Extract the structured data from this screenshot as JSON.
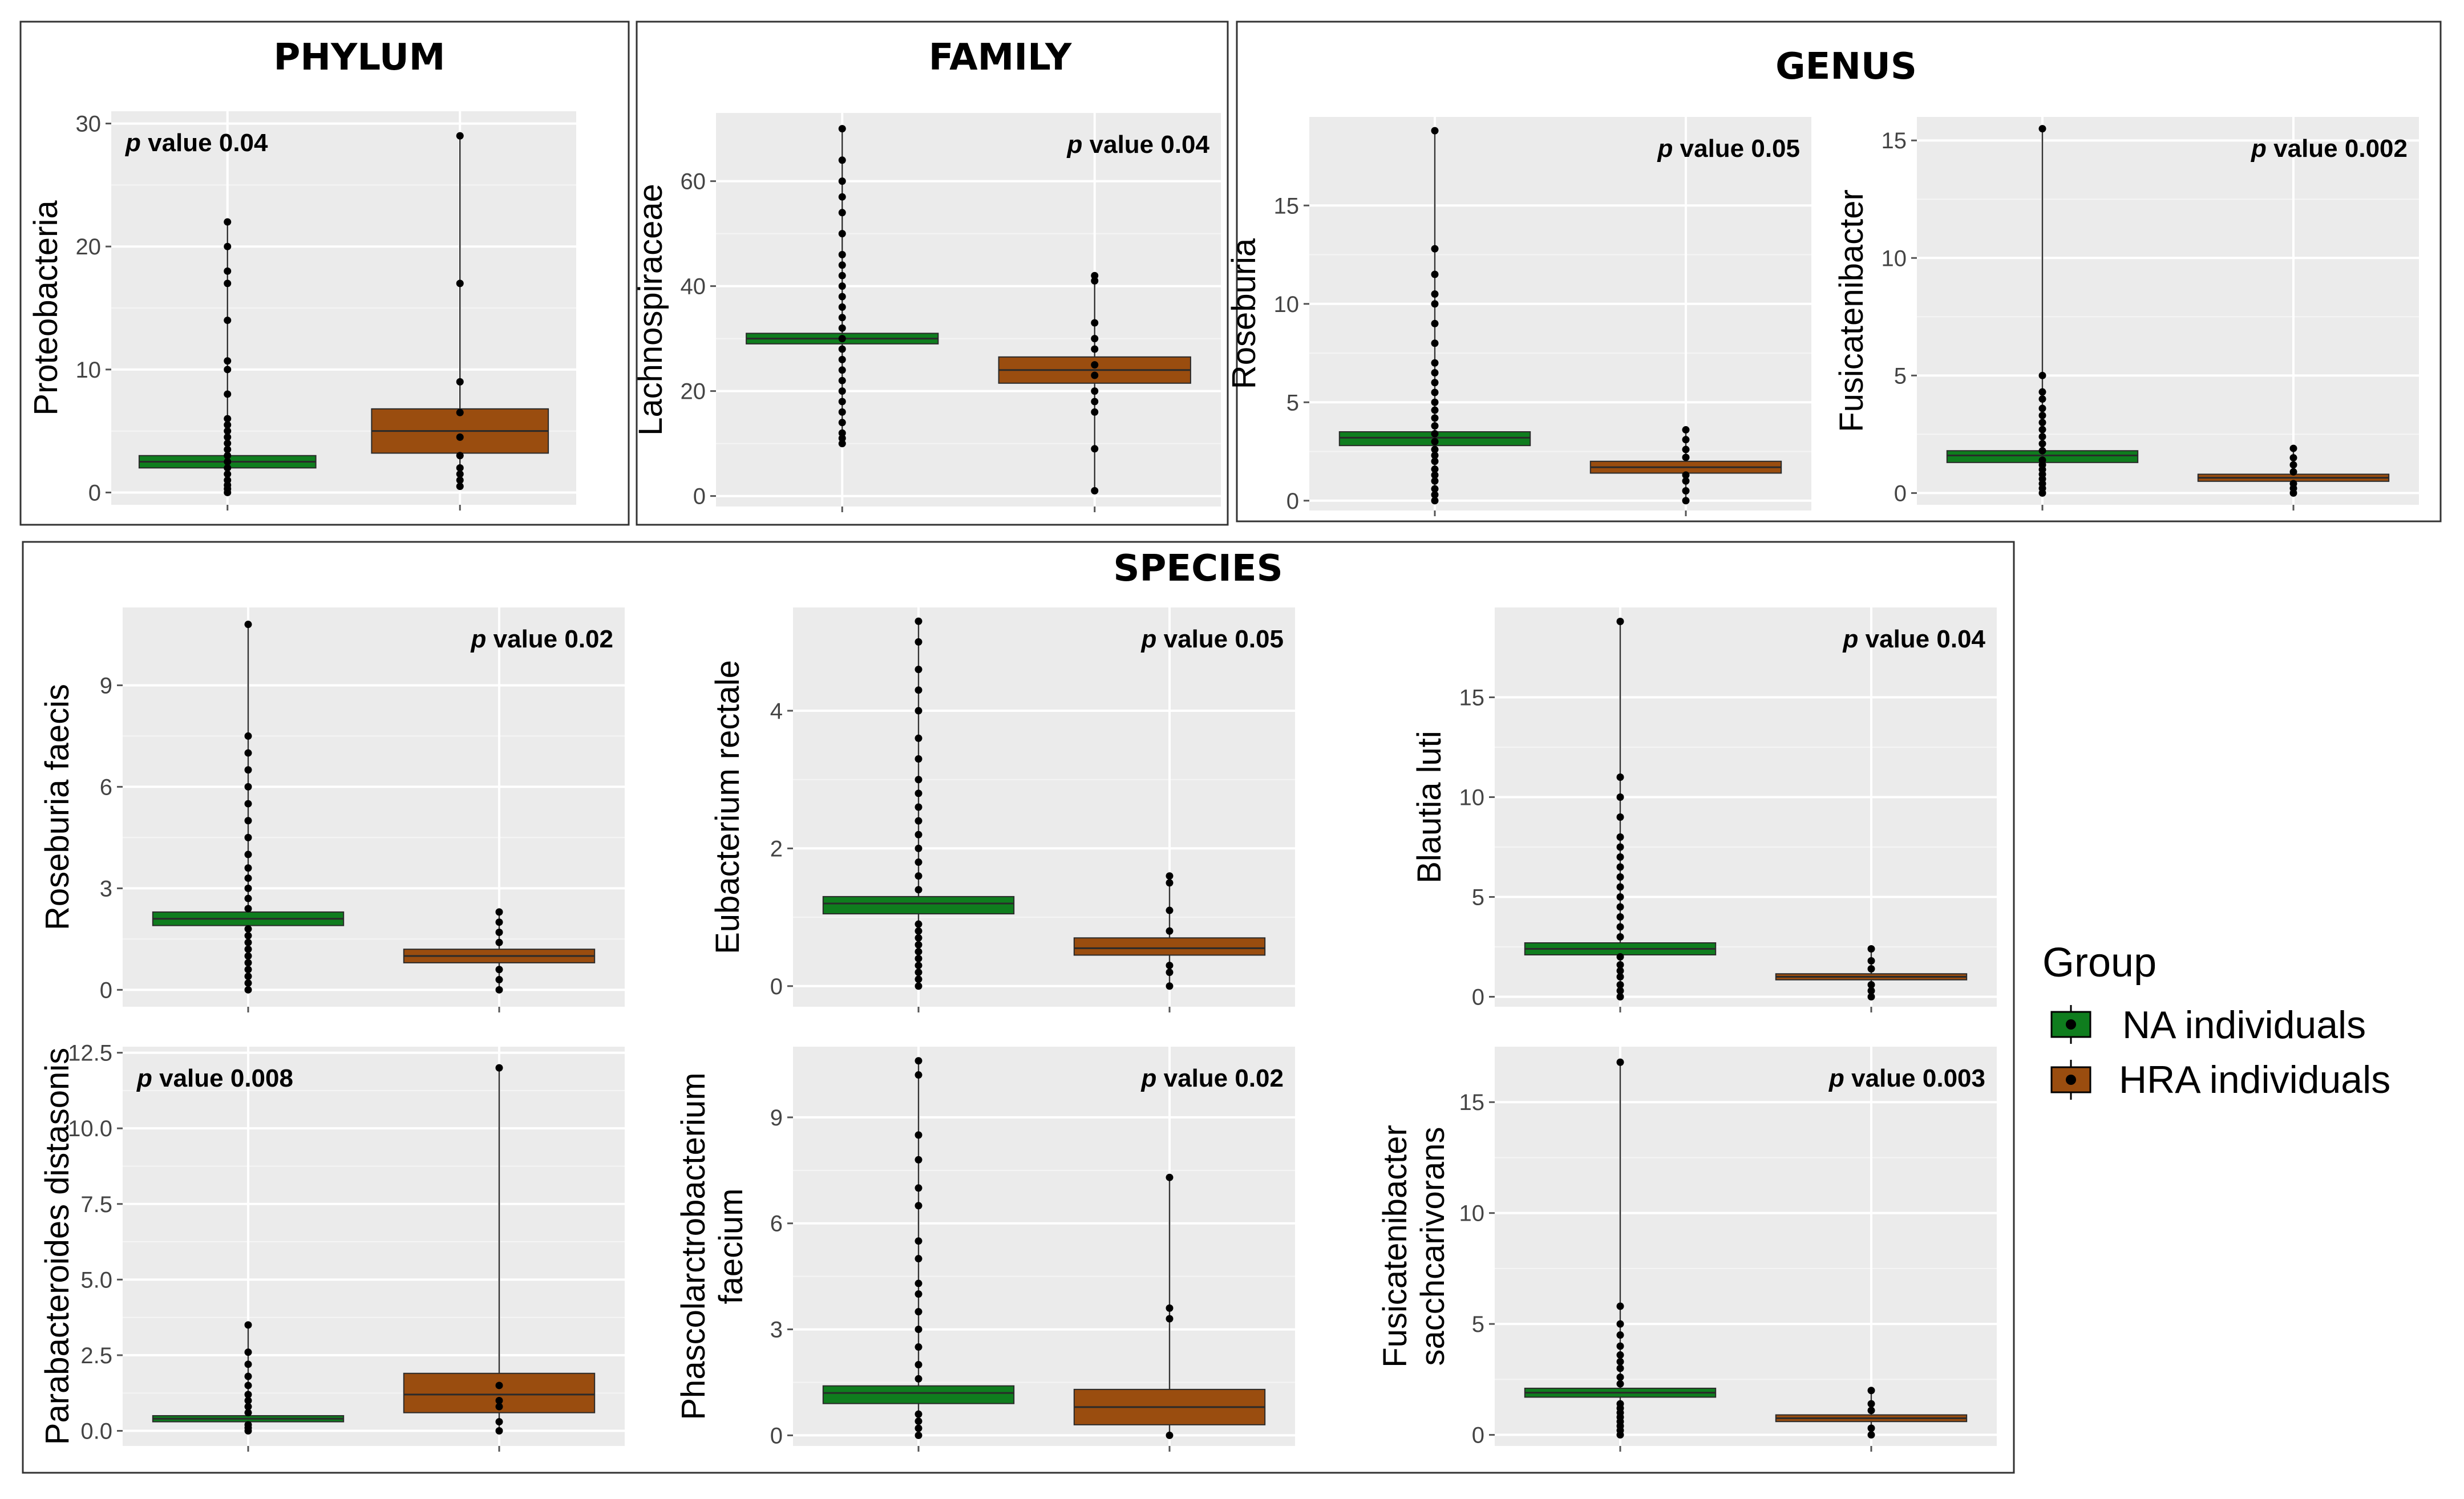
{
  "colors": {
    "na": "#0f7d1e",
    "hra": "#9a4d0f",
    "panel": "#ebebeb",
    "grid": "#ffffff"
  },
  "sections": {
    "phylum": "PHYLUM",
    "family": "FAMILY",
    "genus": "GENUS",
    "species": "SPECIES"
  },
  "legend": {
    "title": "Group",
    "items": [
      {
        "label": "NA individuals",
        "color": "#0f7d1e"
      },
      {
        "label": "HRA individuals",
        "color": "#9a4d0f"
      }
    ]
  },
  "pvalue_prefix": "p",
  "chart_data": [
    {
      "type": "box",
      "ylabel": "Proteobacteria",
      "pvalue": "value 0.04",
      "ylim": [
        -1,
        31
      ],
      "ticks": [
        0,
        10,
        20,
        30
      ],
      "tick_labels": [
        "0",
        "10",
        "20",
        "30"
      ],
      "series": [
        {
          "name": "NA individuals",
          "q1": 2.0,
          "median": 2.5,
          "q3": 3.0,
          "whisker_min": 0,
          "whisker_max": 22,
          "outliers": [
            0,
            0.3,
            0.6,
            1,
            1.5,
            2,
            2.5,
            3,
            3.5,
            4,
            4.5,
            5,
            5.5,
            6,
            8,
            10,
            10.7,
            14,
            17,
            18,
            20,
            22
          ]
        },
        {
          "name": "HRA individuals",
          "q1": 3.2,
          "median": 5.0,
          "q3": 6.8,
          "whisker_min": 0.5,
          "whisker_max": 29,
          "outliers": [
            0.5,
            1,
            1.5,
            2,
            3,
            4.5,
            6.5,
            9,
            17,
            29
          ]
        }
      ]
    },
    {
      "type": "box",
      "ylabel": "Lachnospiraceae",
      "pvalue": "value 0.04",
      "ylim": [
        -2,
        73
      ],
      "ticks": [
        0,
        20,
        40,
        60
      ],
      "tick_labels": [
        "0",
        "20",
        "40",
        "60"
      ],
      "series": [
        {
          "name": "NA individuals",
          "q1": 29,
          "median": 30,
          "q3": 31,
          "whisker_min": 10,
          "whisker_max": 70,
          "outliers": [
            10,
            11,
            12,
            14,
            16,
            18,
            20,
            22,
            24,
            26,
            28,
            30,
            32,
            34,
            36,
            38,
            40,
            42,
            44,
            46,
            50,
            54,
            57,
            60,
            64,
            70
          ]
        },
        {
          "name": "HRA individuals",
          "q1": 21.5,
          "median": 24,
          "q3": 26.5,
          "whisker_min": 1,
          "whisker_max": 42,
          "outliers": [
            1,
            9,
            16,
            18,
            20,
            23,
            25,
            28,
            30,
            33,
            41,
            42
          ]
        }
      ]
    },
    {
      "type": "box",
      "ylabel": "Roseburia",
      "pvalue": "value 0.05",
      "ylim": [
        -0.5,
        19.5
      ],
      "ticks": [
        0,
        5,
        10,
        15
      ],
      "tick_labels": [
        "0",
        "5",
        "10",
        "15"
      ],
      "series": [
        {
          "name": "NA individuals",
          "q1": 2.8,
          "median": 3.2,
          "q3": 3.5,
          "whisker_min": 0,
          "whisker_max": 18.8,
          "outliers": [
            0,
            0.3,
            0.6,
            1,
            1.3,
            1.6,
            2,
            2.3,
            2.6,
            3,
            3.4,
            3.8,
            4.2,
            4.6,
            5,
            5.5,
            6,
            6.5,
            7,
            8,
            9,
            10,
            10.5,
            11.5,
            12.8,
            18.8
          ]
        },
        {
          "name": "HRA individuals",
          "q1": 1.4,
          "median": 1.7,
          "q3": 2.0,
          "whisker_min": 0,
          "whisker_max": 3.6,
          "outliers": [
            0,
            0.5,
            1,
            1.3,
            2.2,
            2.6,
            3.1,
            3.6
          ]
        }
      ]
    },
    {
      "type": "box",
      "ylabel": "Fusicatenibacter",
      "pvalue": "value 0.002",
      "ylim": [
        -0.5,
        16
      ],
      "ticks": [
        0,
        5,
        10,
        15
      ],
      "tick_labels": [
        "0",
        "5",
        "10",
        "15"
      ],
      "series": [
        {
          "name": "NA individuals",
          "q1": 1.3,
          "median": 1.6,
          "q3": 1.8,
          "whisker_min": 0,
          "whisker_max": 15.5,
          "outliers": [
            0,
            0.2,
            0.4,
            0.6,
            0.8,
            1,
            1.2,
            1.4,
            1.8,
            2.1,
            2.4,
            2.7,
            3,
            3.3,
            3.6,
            4,
            4.3,
            5,
            15.5
          ]
        },
        {
          "name": "HRA individuals",
          "q1": 0.5,
          "median": 0.65,
          "q3": 0.8,
          "whisker_min": 0,
          "whisker_max": 1.9,
          "outliers": [
            0,
            0.2,
            0.4,
            0.9,
            1.2,
            1.5,
            1.9
          ]
        }
      ]
    },
    {
      "type": "box",
      "ylabel": "Roseburia faecis",
      "pvalue": "value 0.02",
      "ylim": [
        -0.5,
        11.3
      ],
      "ticks": [
        0,
        3,
        6,
        9
      ],
      "tick_labels": [
        "0",
        "3",
        "6",
        "9"
      ],
      "series": [
        {
          "name": "NA individuals",
          "q1": 1.9,
          "median": 2.1,
          "q3": 2.3,
          "whisker_min": 0,
          "whisker_max": 10.8,
          "outliers": [
            0,
            0.2,
            0.4,
            0.6,
            0.8,
            1,
            1.2,
            1.4,
            1.6,
            1.8,
            2.4,
            2.7,
            3,
            3.3,
            3.6,
            4,
            4.5,
            5,
            5.5,
            6,
            6.5,
            7,
            7.5,
            10.8
          ]
        },
        {
          "name": "HRA individuals",
          "q1": 0.8,
          "median": 1.0,
          "q3": 1.2,
          "whisker_min": 0,
          "whisker_max": 2.3,
          "outliers": [
            0,
            0.3,
            0.6,
            1.4,
            1.7,
            2,
            2.3
          ]
        }
      ]
    },
    {
      "type": "box",
      "ylabel": "Eubacterium rectale",
      "pvalue": "value 0.05",
      "ylim": [
        -0.3,
        5.5
      ],
      "ticks": [
        0,
        2,
        4
      ],
      "tick_labels": [
        "0",
        "2",
        "4"
      ],
      "series": [
        {
          "name": "NA individuals",
          "q1": 1.05,
          "median": 1.2,
          "q3": 1.3,
          "whisker_min": 0,
          "whisker_max": 5.3,
          "outliers": [
            0,
            0.1,
            0.2,
            0.3,
            0.4,
            0.5,
            0.6,
            0.7,
            0.8,
            0.9,
            1.4,
            1.6,
            1.8,
            2,
            2.2,
            2.4,
            2.6,
            2.8,
            3,
            3.3,
            3.6,
            4,
            4.3,
            4.6,
            5,
            5.3
          ]
        },
        {
          "name": "HRA individuals",
          "q1": 0.45,
          "median": 0.55,
          "q3": 0.7,
          "whisker_min": 0,
          "whisker_max": 1.6,
          "outliers": [
            0,
            0.2,
            0.3,
            0.8,
            1.1,
            1.5,
            1.6
          ]
        }
      ]
    },
    {
      "type": "box",
      "ylabel": "Blautia luti",
      "pvalue": "value 0.04",
      "ylim": [
        -0.5,
        19.5
      ],
      "ticks": [
        0,
        5,
        10,
        15
      ],
      "tick_labels": [
        "0",
        "5",
        "10",
        "15"
      ],
      "series": [
        {
          "name": "NA individuals",
          "q1": 2.1,
          "median": 2.4,
          "q3": 2.7,
          "whisker_min": 0,
          "whisker_max": 18.8,
          "outliers": [
            0,
            0.3,
            0.6,
            1,
            1.3,
            1.6,
            2,
            3,
            3.5,
            4,
            4.5,
            5,
            5.5,
            6,
            6.5,
            7,
            7.5,
            8,
            9,
            10,
            11,
            18.8
          ]
        },
        {
          "name": "HRA individuals",
          "q1": 0.85,
          "median": 1.0,
          "q3": 1.15,
          "whisker_min": 0,
          "whisker_max": 2.4,
          "outliers": [
            0,
            0.3,
            0.6,
            1.4,
            1.8,
            2.4
          ]
        }
      ]
    },
    {
      "type": "box",
      "ylabel": "Parabacteroides distasonis",
      "pvalue": "value 0.008",
      "ylim": [
        -0.5,
        12.7
      ],
      "ticks": [
        0,
        2.5,
        5,
        7.5,
        10,
        12.5
      ],
      "tick_labels": [
        "0.0",
        "2.5",
        "5.0",
        "7.5",
        "10.0",
        "12.5"
      ],
      "series": [
        {
          "name": "NA individuals",
          "q1": 0.3,
          "median": 0.4,
          "q3": 0.5,
          "whisker_min": 0,
          "whisker_max": 3.5,
          "outliers": [
            0,
            0.1,
            0.2,
            0.6,
            0.8,
            1,
            1.2,
            1.5,
            1.8,
            2.2,
            2.6,
            3.5
          ]
        },
        {
          "name": "HRA individuals",
          "q1": 0.6,
          "median": 1.2,
          "q3": 1.9,
          "whisker_min": 0,
          "whisker_max": 12,
          "outliers": [
            0,
            0.3,
            0.8,
            1,
            1.5,
            12
          ]
        }
      ]
    },
    {
      "type": "box",
      "ylabel": "Phascolarctrobacterium faecium",
      "pvalue": "value 0.02",
      "ylim": [
        -0.3,
        11
      ],
      "ticks": [
        0,
        3,
        6,
        9
      ],
      "tick_labels": [
        "0",
        "3",
        "6",
        "9"
      ],
      "series": [
        {
          "name": "NA individuals",
          "q1": 0.9,
          "median": 1.2,
          "q3": 1.4,
          "whisker_min": 0,
          "whisker_max": 10.6,
          "outliers": [
            0,
            0.2,
            0.4,
            0.6,
            1.6,
            2,
            2.5,
            3,
            3.5,
            4,
            4.3,
            5,
            5.5,
            6.5,
            7,
            7.8,
            8.5,
            10.2,
            10.6
          ]
        },
        {
          "name": "HRA individuals",
          "q1": 0.3,
          "median": 0.8,
          "q3": 1.3,
          "whisker_min": 0,
          "whisker_max": 7.3,
          "outliers": [
            0,
            3.3,
            3.6,
            7.3
          ]
        }
      ]
    },
    {
      "type": "box",
      "ylabel": "Fusicatenibacter sacchcarivorans",
      "pvalue": "value 0.003",
      "ylim": [
        -0.5,
        17.5
      ],
      "ticks": [
        0,
        5,
        10,
        15
      ],
      "tick_labels": [
        "0",
        "5",
        "10",
        "15"
      ],
      "series": [
        {
          "name": "NA individuals",
          "q1": 1.7,
          "median": 1.9,
          "q3": 2.1,
          "whisker_min": 0,
          "whisker_max": 16.8,
          "outliers": [
            0,
            0.2,
            0.4,
            0.6,
            0.8,
            1,
            1.2,
            1.4,
            2.3,
            2.6,
            3,
            3.3,
            3.6,
            4,
            4.5,
            5,
            5.8,
            16.8
          ]
        },
        {
          "name": "HRA individuals",
          "q1": 0.6,
          "median": 0.75,
          "q3": 0.9,
          "whisker_min": 0,
          "whisker_max": 2.0,
          "outliers": [
            0,
            0.3,
            1.1,
            1.4,
            2.0
          ]
        }
      ]
    }
  ]
}
